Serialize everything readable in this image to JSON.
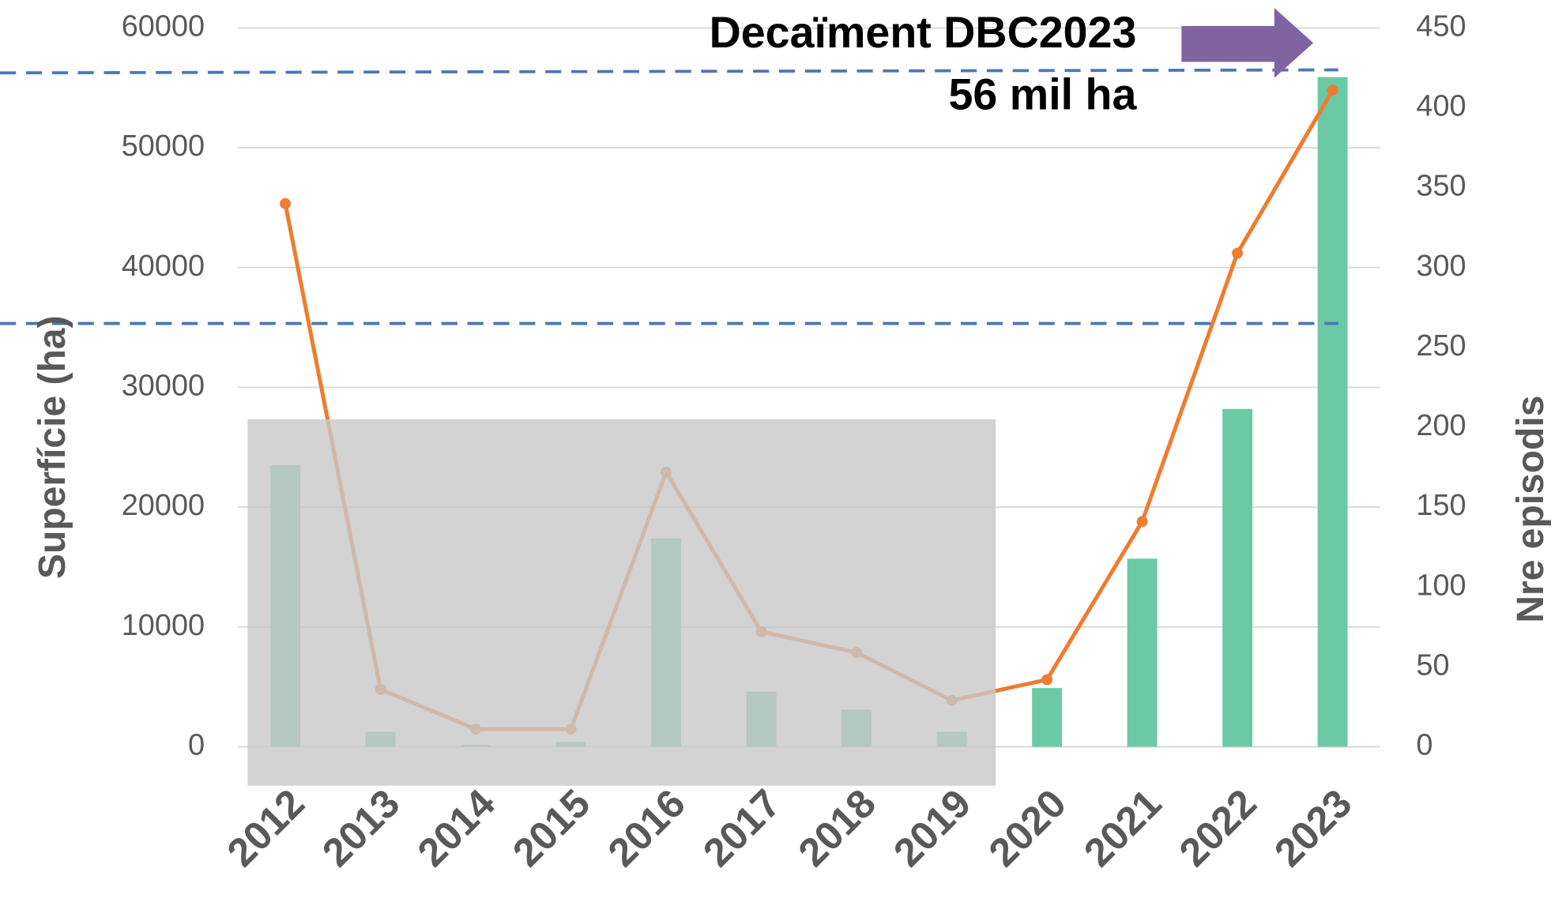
{
  "chart_data": {
    "type": "bar-line",
    "annotation": [
      "Decaïment DBC2023",
      "56 mil ha"
    ],
    "ylabel": "Superfície (ha)",
    "y2label": "Nre episodis",
    "categories": [
      "2012",
      "2013",
      "2014",
      "2015",
      "2016",
      "2017",
      "2018",
      "2019",
      "2020",
      "2021",
      "2022",
      "2023"
    ],
    "series": [
      {
        "name": "Superfície",
        "type": "bar",
        "color": "#6cc9a6",
        "values": [
          23500,
          1250,
          150,
          400,
          17400,
          4600,
          3100,
          1250,
          4900,
          15700,
          28200,
          55900
        ]
      },
      {
        "name": "Episodis",
        "type": "line",
        "axis": "y2",
        "color": "#ed7d31",
        "values": [
          340,
          36,
          11,
          11,
          172,
          72,
          59,
          29,
          42,
          141,
          309,
          411
        ]
      }
    ],
    "ylim": [
      0,
      60000
    ],
    "yticks": [
      0,
      10000,
      20000,
      30000,
      40000,
      50000,
      60000
    ],
    "y2lim": [
      0,
      450
    ],
    "y2ticks": [
      0,
      50,
      100,
      150,
      200,
      250,
      300,
      350,
      400,
      450
    ],
    "grid": true
  }
}
